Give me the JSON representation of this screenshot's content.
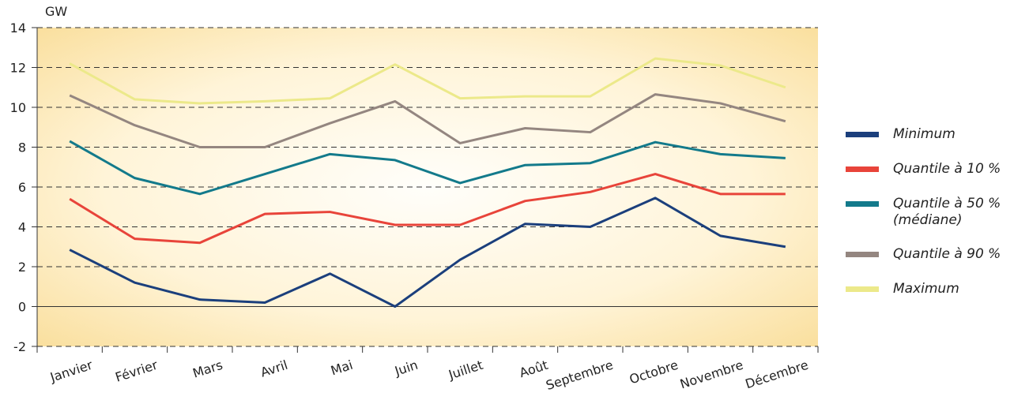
{
  "chart_data": {
    "type": "line",
    "y_label": "GW",
    "categories": [
      "Janvier",
      "Février",
      "Mars",
      "Avril",
      "Mai",
      "Juin",
      "Juillet",
      "Août",
      "Septembre",
      "Octobre",
      "Novembre",
      "Décembre"
    ],
    "series": [
      {
        "name": "Minimum",
        "color": "#1b3f7c",
        "values": [
          2.85,
          1.2,
          0.35,
          0.2,
          1.65,
          0.0,
          2.35,
          4.15,
          4.0,
          5.45,
          3.55,
          3.0
        ]
      },
      {
        "name": "Quantile à 10 %",
        "color": "#e8443a",
        "values": [
          5.4,
          3.4,
          3.2,
          4.65,
          4.75,
          4.1,
          4.1,
          5.3,
          5.75,
          6.65,
          5.65,
          5.65
        ]
      },
      {
        "name": "Quantile à 50 % (médiane)",
        "color": "#137a8b",
        "values": [
          8.3,
          6.45,
          5.65,
          6.65,
          7.65,
          7.35,
          6.2,
          7.1,
          7.2,
          8.25,
          7.65,
          7.45
        ]
      },
      {
        "name": "Quantile à 90 %",
        "color": "#948680",
        "values": [
          10.6,
          9.1,
          8.0,
          8.0,
          9.2,
          10.3,
          8.2,
          8.95,
          8.75,
          10.65,
          10.2,
          9.3
        ]
      },
      {
        "name": "Maximum",
        "color": "#ece98a",
        "values": [
          12.2,
          10.4,
          10.2,
          10.3,
          10.45,
          12.15,
          10.45,
          10.55,
          10.55,
          12.45,
          12.1,
          11.0
        ]
      }
    ],
    "ylim": [
      -2,
      14
    ],
    "yticks": [
      -2,
      0,
      2,
      4,
      6,
      8,
      10,
      12,
      14
    ],
    "grid": true,
    "legend": "right"
  }
}
